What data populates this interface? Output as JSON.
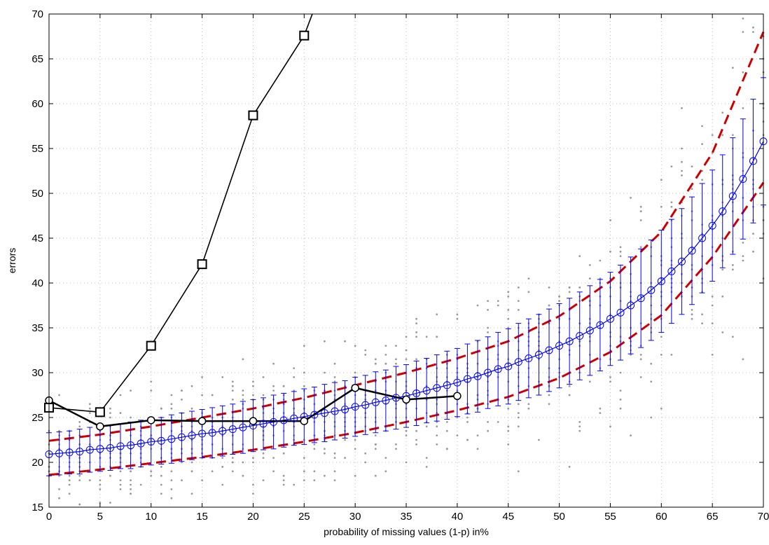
{
  "chart_data": {
    "type": "line",
    "title": "",
    "xlabel": "probability of missing values (1-p) in%",
    "ylabel": "errors",
    "xlim": [
      0,
      70
    ],
    "ylim": [
      15,
      70
    ],
    "xticks": [
      0,
      5,
      10,
      15,
      20,
      25,
      30,
      35,
      40,
      45,
      50,
      55,
      60,
      65,
      70
    ],
    "yticks": [
      15,
      20,
      25,
      30,
      35,
      40,
      45,
      50,
      55,
      60,
      65,
      70
    ],
    "grid": true,
    "legend": "none",
    "colors": {
      "squares": "#000000",
      "circles": "#000000",
      "mean": "#0000ff",
      "error_bars": "#0000ff",
      "bounds": "#cc0000",
      "scatter": "#9a9a9a"
    },
    "series": [
      {
        "marker": "square",
        "x": [
          0,
          5,
          10,
          15,
          20,
          25,
          25.8
        ],
        "y": [
          26.1,
          25.6,
          33.0,
          42.1,
          58.7,
          67.6,
          70.0
        ]
      },
      {
        "marker": "circle",
        "x": [
          0,
          5,
          10,
          15,
          20,
          25,
          30,
          35,
          40
        ],
        "y": [
          26.9,
          24.0,
          24.7,
          24.6,
          24.6,
          24.6,
          28.3,
          27.0,
          27.4
        ]
      },
      {
        "marker": "open-circle-errorbar",
        "x": [
          0,
          1,
          2,
          3,
          4,
          5,
          6,
          7,
          8,
          9,
          10,
          11,
          12,
          13,
          14,
          15,
          16,
          17,
          18,
          19,
          20,
          21,
          22,
          23,
          24,
          25,
          26,
          27,
          28,
          29,
          30,
          31,
          32,
          33,
          34,
          35,
          36,
          37,
          38,
          39,
          40,
          41,
          42,
          43,
          44,
          45,
          46,
          47,
          48,
          49,
          50,
          51,
          52,
          53,
          54,
          55,
          56,
          57,
          58,
          59,
          60,
          61,
          62,
          63,
          64,
          65,
          66,
          67,
          68,
          69,
          70
        ],
        "y": [
          20.9,
          21.0,
          21.1,
          21.2,
          21.4,
          21.5,
          21.6,
          21.8,
          21.9,
          22.1,
          22.3,
          22.4,
          22.6,
          22.8,
          23.0,
          23.2,
          23.3,
          23.5,
          23.7,
          23.9,
          24.1,
          24.3,
          24.5,
          24.7,
          24.9,
          25.1,
          25.3,
          25.5,
          25.7,
          25.9,
          26.2,
          26.4,
          26.7,
          26.9,
          27.2,
          27.4,
          27.7,
          28.0,
          28.3,
          28.6,
          28.9,
          29.3,
          29.6,
          30.0,
          30.4,
          30.7,
          31.2,
          31.6,
          32.0,
          32.5,
          33.0,
          33.5,
          34.1,
          34.7,
          35.3,
          36.0,
          36.7,
          37.5,
          38.3,
          39.2,
          40.2,
          41.3,
          42.4,
          43.6,
          45.0,
          46.4,
          48.0,
          49.7,
          51.6,
          53.6,
          55.8
        ],
        "err": [
          2.4,
          2.4,
          2.4,
          2.5,
          2.5,
          2.5,
          2.5,
          2.5,
          2.6,
          2.6,
          2.6,
          2.6,
          2.7,
          2.7,
          2.7,
          2.7,
          2.8,
          2.8,
          2.8,
          2.9,
          2.9,
          2.9,
          3.0,
          3.0,
          3.0,
          3.1,
          3.1,
          3.2,
          3.2,
          3.2,
          3.3,
          3.3,
          3.4,
          3.4,
          3.5,
          3.5,
          3.6,
          3.6,
          3.7,
          3.8,
          3.8,
          3.9,
          4.0,
          4.0,
          4.1,
          4.2,
          4.3,
          4.4,
          4.5,
          4.6,
          4.7,
          4.8,
          4.9,
          5.0,
          5.1,
          5.2,
          5.3,
          5.4,
          5.5,
          5.6,
          5.7,
          5.8,
          5.9,
          6.0,
          6.1,
          6.2,
          6.3,
          6.5,
          6.7,
          6.9,
          7.1
        ]
      },
      {
        "marker": "none",
        "style": "dashed",
        "x": [
          0,
          5,
          10,
          15,
          20,
          25,
          30,
          35,
          40,
          45,
          50,
          55,
          60,
          65,
          70
        ],
        "y": [
          22.4,
          23.1,
          24.0,
          25.0,
          26.0,
          27.2,
          28.6,
          30.0,
          31.6,
          33.5,
          36.3,
          40.2,
          45.7,
          54.5,
          68.0
        ]
      },
      {
        "marker": "none",
        "style": "dashed",
        "x": [
          0,
          5,
          10,
          15,
          20,
          25,
          30,
          35,
          40,
          45,
          50,
          55,
          60,
          65,
          70
        ],
        "y": [
          18.6,
          19.2,
          19.9,
          20.6,
          21.4,
          22.3,
          23.3,
          24.5,
          25.8,
          27.3,
          29.4,
          32.3,
          36.4,
          42.9,
          51.2
        ]
      }
    ]
  }
}
